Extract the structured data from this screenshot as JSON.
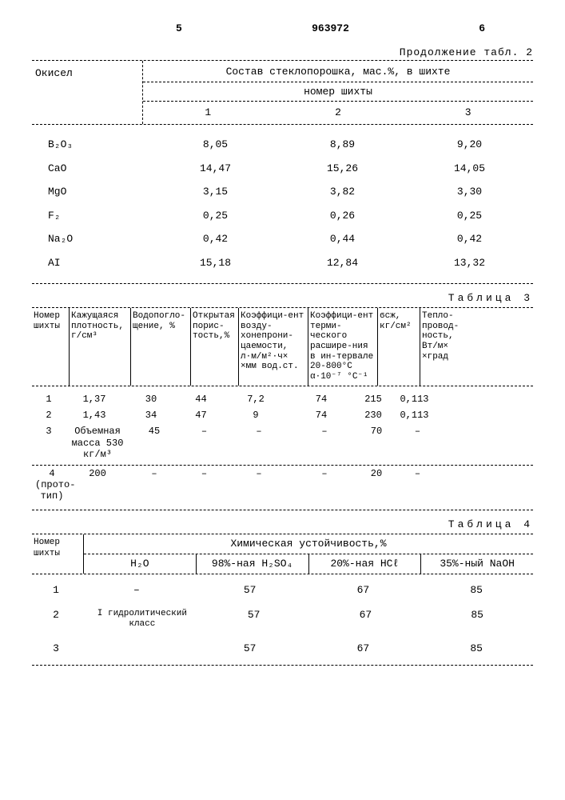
{
  "page_left": "5",
  "doc_number": "963972",
  "page_right": "6",
  "cont_label": "Продолжение табл. 2",
  "t2": {
    "left_header": "Окисел",
    "right_header": "Состав стеклопорошка, мас.%, в шихте",
    "sub_header": "номер шихты",
    "cols": [
      "1",
      "2",
      "3"
    ],
    "rows": [
      {
        "oxide": "B₂O₃",
        "v": [
          "8,05",
          "8,89",
          "9,20"
        ]
      },
      {
        "oxide": "CaO",
        "v": [
          "14,47",
          "15,26",
          "14,05"
        ]
      },
      {
        "oxide": "MgO",
        "v": [
          "3,15",
          "3,82",
          "3,30"
        ]
      },
      {
        "oxide": "F₂",
        "v": [
          "0,25",
          "0,26",
          "0,25"
        ]
      },
      {
        "oxide": "Na₂O",
        "v": [
          "0,42",
          "0,44",
          "0,42"
        ]
      },
      {
        "oxide": "AI",
        "v": [
          "15,18",
          "12,84",
          "13,32"
        ]
      }
    ]
  },
  "t3": {
    "label": "Таблица 3",
    "headers": [
      "Номер шихты",
      "Кажущаяся плотность, г/см³",
      "Водопогло-щение, %",
      "Открытая порис-тость,%",
      "Коэффици-ент возду-хонепрони-цаемости, л·м/м²·ч× ×мм вод.ст.",
      "Коэффици-ент терми-ческого расшире-ния в ин-тервале 20-800°C α·10⁻⁷ °C⁻¹",
      "ϭсж, кг/см²",
      "Тепло-провод-ность, Вт/м× ×град"
    ],
    "rows": [
      {
        "n": "1",
        "v": [
          "1,37",
          "30",
          "44",
          "7,2",
          "74",
          "215",
          "0,113"
        ]
      },
      {
        "n": "2",
        "v": [
          "1,43",
          "34",
          "47",
          "9",
          "74",
          "230",
          "0,113"
        ]
      }
    ],
    "row3": {
      "n": "3",
      "note": "Объемная масса 530 кг/м³",
      "v": [
        "45",
        "–",
        "–",
        "–",
        "70",
        "–"
      ]
    },
    "row4": {
      "n": "4 (прото-тип)",
      "val": "200",
      "v": [
        "–",
        "–",
        "–",
        "–",
        "20",
        "–"
      ]
    }
  },
  "t4": {
    "label": "Таблица 4",
    "left_header": "Номер шихты",
    "title": "Химическая устойчивость,%",
    "cols": [
      "H₂O",
      "98%-ная H₂SO₄",
      "20%-ная HCℓ",
      "35%-ный NaOH"
    ],
    "rows": [
      {
        "n": "1",
        "v": [
          "–",
          "57",
          "67",
          "85"
        ]
      },
      {
        "n": "2",
        "v": [
          "I гидролитический класс",
          "57",
          "67",
          "85"
        ]
      },
      {
        "n": "3",
        "v": [
          "",
          "57",
          "67",
          "85"
        ]
      }
    ]
  }
}
